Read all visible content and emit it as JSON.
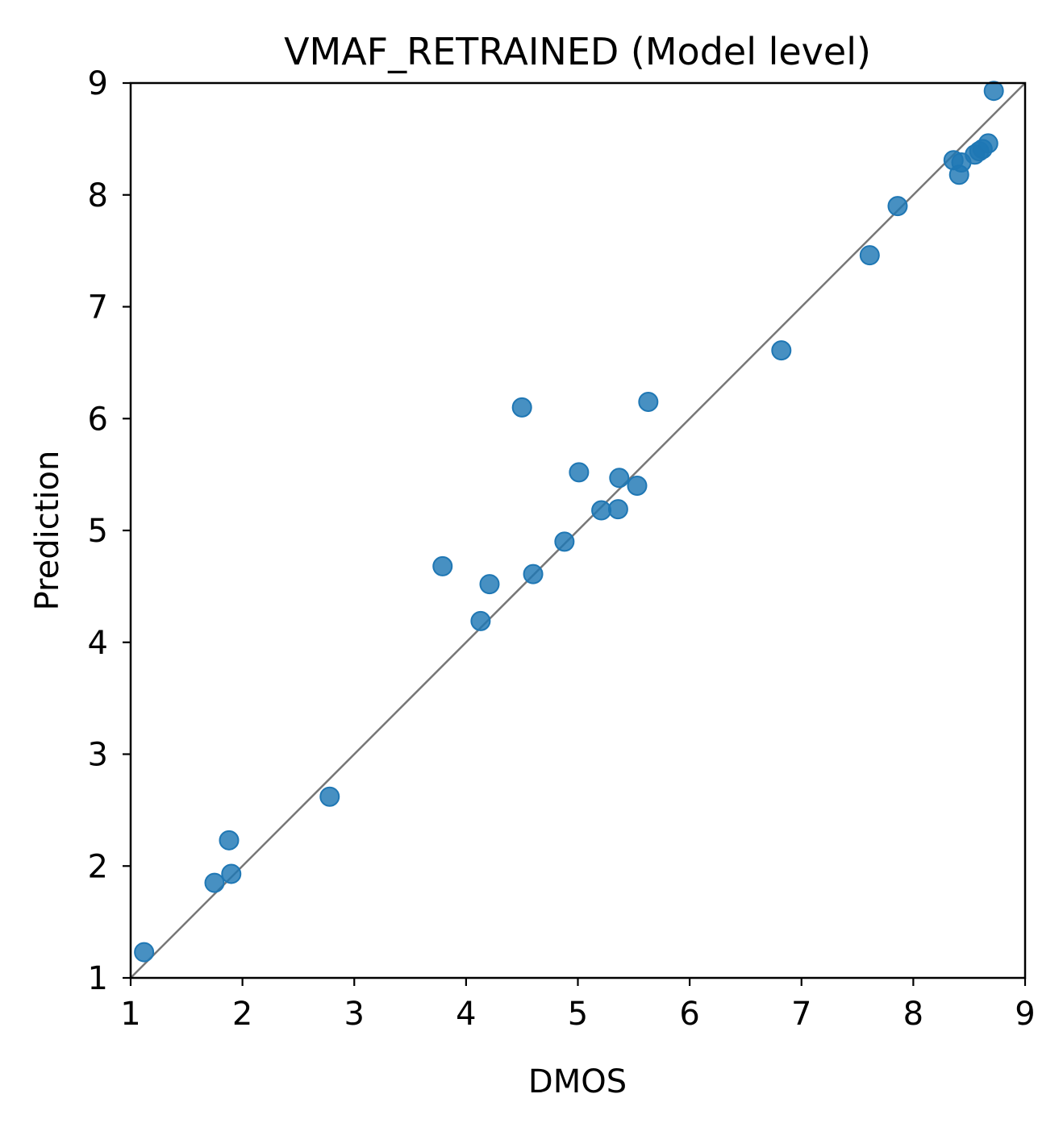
{
  "chart_data": {
    "type": "scatter",
    "title": "VMAF_RETRAINED (Model level)",
    "xlabel": "DMOS",
    "ylabel": "Prediction",
    "xlim": [
      1,
      9
    ],
    "ylim": [
      1,
      9
    ],
    "xticks": [
      "1",
      "2",
      "3",
      "4",
      "5",
      "6",
      "7",
      "8",
      "9"
    ],
    "yticks": [
      "1",
      "2",
      "3",
      "4",
      "5",
      "6",
      "7",
      "8",
      "9"
    ],
    "grid": false,
    "reference_line": {
      "from": [
        1,
        1
      ],
      "to": [
        9,
        9
      ],
      "color": "#777777"
    },
    "marker_color": "#1f77b4",
    "series": [
      {
        "name": "VMAF_RETRAINED",
        "points": [
          [
            1.12,
            1.23
          ],
          [
            1.75,
            1.85
          ],
          [
            1.9,
            1.93
          ],
          [
            1.88,
            2.23
          ],
          [
            2.78,
            2.62
          ],
          [
            3.79,
            4.68
          ],
          [
            4.13,
            4.19
          ],
          [
            4.21,
            4.52
          ],
          [
            4.6,
            4.61
          ],
          [
            4.5,
            6.1
          ],
          [
            4.88,
            4.9
          ],
          [
            5.01,
            5.52
          ],
          [
            5.21,
            5.18
          ],
          [
            5.36,
            5.19
          ],
          [
            5.37,
            5.47
          ],
          [
            5.53,
            5.4
          ],
          [
            5.63,
            6.15
          ],
          [
            6.82,
            6.61
          ],
          [
            7.61,
            7.46
          ],
          [
            7.86,
            7.9
          ],
          [
            8.36,
            8.31
          ],
          [
            8.41,
            8.18
          ],
          [
            8.43,
            8.29
          ],
          [
            8.55,
            8.36
          ],
          [
            8.59,
            8.39
          ],
          [
            8.62,
            8.41
          ],
          [
            8.67,
            8.46
          ],
          [
            8.72,
            8.93
          ]
        ]
      }
    ]
  }
}
